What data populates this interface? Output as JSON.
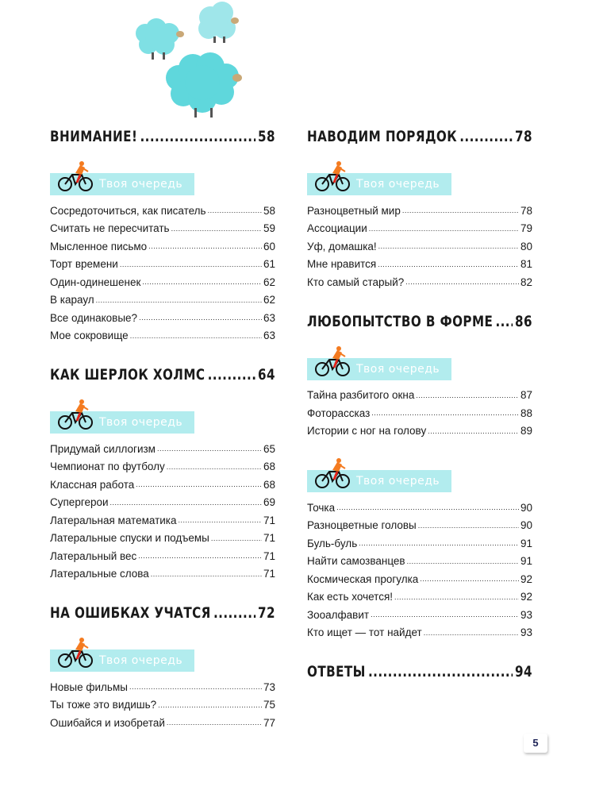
{
  "banner_label": "Твоя очередь",
  "colors": {
    "banner": "#b2ecee",
    "sheep": "#6fdde0",
    "bike_rider": "#f47b20",
    "page_number_text": "#1d2357"
  },
  "page_number": "5",
  "columns": [
    {
      "blocks": [
        {
          "heading": {
            "title": "Внимание!",
            "page": "58"
          },
          "banner": true,
          "entries": [
            {
              "title": "Сосредоточиться, как писатель",
              "page": "58"
            },
            {
              "title": "Считать не пересчитать",
              "page": "59"
            },
            {
              "title": "Мысленное письмо",
              "page": "60"
            },
            {
              "title": "Торт времени",
              "page": "61"
            },
            {
              "title": "Один-одинешенек",
              "page": "62"
            },
            {
              "title": "В караул",
              "page": "62"
            },
            {
              "title": "Все одинаковые?",
              "page": "63"
            },
            {
              "title": "Мое сокровище",
              "page": "63"
            }
          ]
        },
        {
          "heading": {
            "title": "Как Шерлок Холмс",
            "page": "64"
          },
          "banner": true,
          "entries": [
            {
              "title": "Придумай силлогизм",
              "page": "65"
            },
            {
              "title": "Чемпионат по футболу",
              "page": "68"
            },
            {
              "title": "Классная работа",
              "page": "68"
            },
            {
              "title": "Супергерои",
              "page": "69"
            },
            {
              "title": "Латеральная математика",
              "page": "71"
            },
            {
              "title": "Латеральные спуски и подъемы",
              "page": "71"
            },
            {
              "title": "Латеральный вес",
              "page": "71"
            },
            {
              "title": "Латеральные слова",
              "page": "71"
            }
          ]
        },
        {
          "heading": {
            "title": "На ошибках учатся",
            "page": "72"
          },
          "banner": true,
          "entries": [
            {
              "title": "Новые фильмы",
              "page": "73"
            },
            {
              "title": "Ты тоже это видишь?",
              "page": "75"
            },
            {
              "title": "Ошибайся и изобретай",
              "page": "77"
            }
          ]
        }
      ]
    },
    {
      "blocks": [
        {
          "heading": {
            "title": "Наводим порядок",
            "page": "78"
          },
          "banner": true,
          "entries": [
            {
              "title": "Разноцветный мир",
              "page": "78"
            },
            {
              "title": "Ассоциации",
              "page": "79"
            },
            {
              "title": "Уф, домашка!",
              "page": "80"
            },
            {
              "title": "Мне нравится",
              "page": "81"
            },
            {
              "title": "Кто самый старый?",
              "page": "82"
            }
          ]
        },
        {
          "heading": {
            "title": "Любопытство в форме",
            "page": "86"
          },
          "banner": true,
          "entries": [
            {
              "title": "Тайна разбитого окна",
              "page": "87"
            },
            {
              "title": "Фоторассказ",
              "page": "88"
            },
            {
              "title": "Истории с ног на голову",
              "page": "89"
            }
          ]
        },
        {
          "heading": null,
          "banner": true,
          "entries": [
            {
              "title": "Точка",
              "page": "90"
            },
            {
              "title": "Разноцветные головы",
              "page": "90"
            },
            {
              "title": "Буль-буль",
              "page": "91"
            },
            {
              "title": "Найти самозванцев",
              "page": "91"
            },
            {
              "title": "Космическая прогулка",
              "page": "92"
            },
            {
              "title": "Как есть хочется!",
              "page": "92"
            },
            {
              "title": "Зооалфавит",
              "page": "93"
            },
            {
              "title": "Кто ищет — тот найдет",
              "page": "93"
            }
          ]
        },
        {
          "heading": {
            "title": "Ответы",
            "page": "94"
          },
          "banner": false,
          "entries": []
        }
      ]
    }
  ]
}
